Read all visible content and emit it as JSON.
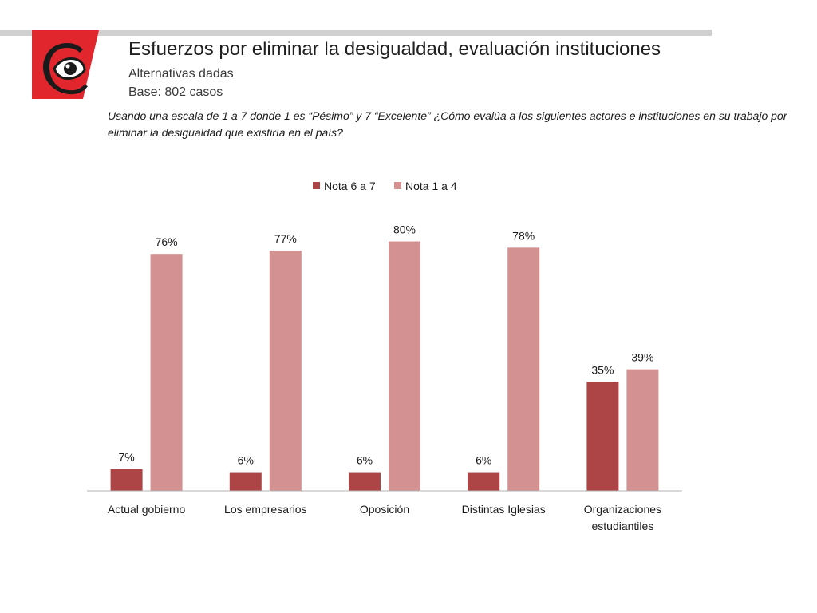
{
  "header": {
    "title": "Esfuerzos por eliminar la desigualdad, evaluación instituciones",
    "subtitle": "Alternativas dadas",
    "base": "Base: 802 casos",
    "question": "Usando una escala de 1 a 7 donde 1 es “Pésimo” y 7 “Excelente” ¿Cómo evalúa a los siguientes actores e instituciones en su trabajo por eliminar la desigualdad que existiría en el país?"
  },
  "logo": {
    "icon": "eye-logo-icon"
  },
  "colors": {
    "series1": "#ad4546",
    "series2": "#d39191",
    "axis": "#b3b3b3",
    "accent": "#e2262d"
  },
  "chart_data": {
    "type": "bar",
    "categories": [
      "Actual gobierno",
      "Los empresarios",
      "Oposición",
      "Distintas Iglesias",
      "Organizaciones estudiantiles"
    ],
    "series": [
      {
        "name": "Nota 6 a 7",
        "values": [
          7,
          6,
          6,
          6,
          35
        ],
        "labels": [
          "7%",
          "6%",
          "6%",
          "6%",
          "35%"
        ]
      },
      {
        "name": "Nota 1 a 4",
        "values": [
          76,
          77,
          80,
          78,
          39
        ],
        "labels": [
          "76%",
          "77%",
          "80%",
          "78%",
          "39%"
        ]
      }
    ],
    "ylim": [
      0,
      85
    ],
    "legend": "top-center",
    "grid": false,
    "xlabel": "",
    "ylabel": ""
  }
}
